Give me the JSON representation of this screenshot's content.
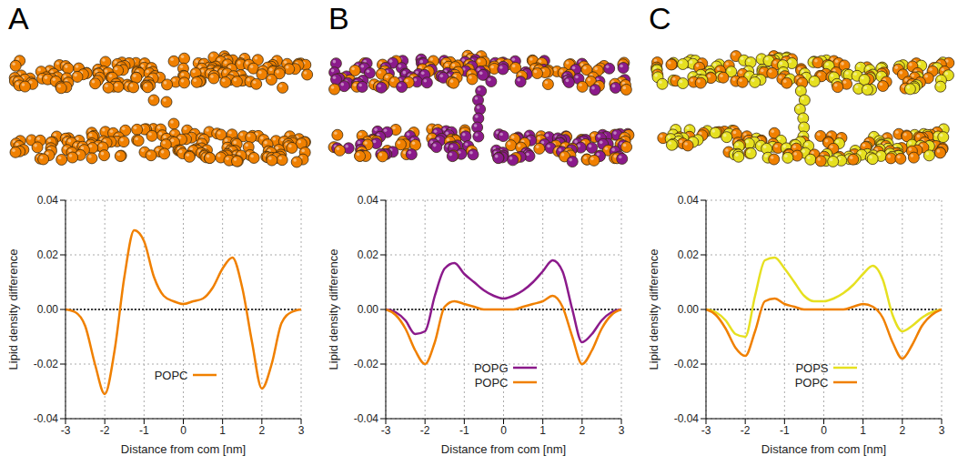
{
  "chart_data": [
    {
      "type": "line",
      "title": "A",
      "x": [
        -3,
        -2.75,
        -2.5,
        -2.25,
        -2,
        -1.75,
        -1.5,
        -1.25,
        -1,
        -0.75,
        -0.5,
        -0.25,
        0,
        0.25,
        0.5,
        0.75,
        1,
        1.25,
        1.5,
        1.75,
        2,
        2.25,
        2.5,
        2.75,
        3
      ],
      "series": [
        {
          "name": "POPC",
          "color": "#f08000",
          "values": [
            0,
            -0.001,
            -0.006,
            -0.02,
            -0.031,
            -0.015,
            0.012,
            0.029,
            0.025,
            0.012,
            0.005,
            0.003,
            0.002,
            0.003,
            0.004,
            0.008,
            0.015,
            0.019,
            0.008,
            -0.012,
            -0.029,
            -0.02,
            -0.005,
            -0.001,
            0
          ]
        }
      ],
      "xlim": [
        -3,
        3
      ],
      "xticks": [
        -3,
        -2,
        -1,
        0,
        1,
        2,
        3
      ],
      "ylim": [
        -0.04,
        0.04
      ],
      "yticks": [
        -0.04,
        -0.02,
        {
          "value": 0,
          "label": "0.00"
        },
        0.02,
        0.04
      ],
      "xlabel": "Distance from com [nm]",
      "ylabel": "Lipid density difference",
      "grid": true,
      "legend": "bottom"
    },
    {
      "type": "line",
      "title": "B",
      "x": [
        -3,
        -2.75,
        -2.5,
        -2.25,
        -2,
        -1.75,
        -1.5,
        -1.25,
        -1,
        -0.75,
        -0.5,
        -0.25,
        0,
        0.25,
        0.5,
        0.75,
        1,
        1.25,
        1.5,
        1.75,
        2,
        2.25,
        2.5,
        2.75,
        3
      ],
      "series": [
        {
          "name": "POPG",
          "color": "#8b1a8b",
          "values": [
            0,
            -0.001,
            -0.004,
            -0.009,
            -0.008,
            0.005,
            0.015,
            0.017,
            0.013,
            0.01,
            0.007,
            0.005,
            0.004,
            0.005,
            0.007,
            0.01,
            0.014,
            0.018,
            0.014,
            0,
            -0.012,
            -0.009,
            -0.004,
            -0.001,
            0
          ]
        },
        {
          "name": "POPC",
          "color": "#f08000",
          "values": [
            0,
            -0.002,
            -0.007,
            -0.015,
            -0.02,
            -0.012,
            0.001,
            0.003,
            0.002,
            0.001,
            0,
            0,
            0,
            0,
            0.001,
            0.002,
            0.003,
            0.005,
            0.001,
            -0.01,
            -0.02,
            -0.015,
            -0.007,
            -0.002,
            0
          ]
        }
      ],
      "xlim": [
        -3,
        3
      ],
      "xticks": [
        -3,
        -2,
        -1,
        0,
        1,
        2,
        3
      ],
      "ylim": [
        -0.04,
        0.04
      ],
      "yticks": [
        -0.04,
        -0.02,
        {
          "value": 0,
          "label": "0.00"
        },
        0.02,
        0.04
      ],
      "xlabel": "Distance from com [nm]",
      "ylabel": "Lipid density difference",
      "grid": true,
      "legend": "bottom"
    },
    {
      "type": "line",
      "title": "C",
      "x": [
        -3,
        -2.75,
        -2.5,
        -2.25,
        -2,
        -1.75,
        -1.5,
        -1.25,
        -1,
        -0.75,
        -0.5,
        -0.25,
        0,
        0.25,
        0.5,
        0.75,
        1,
        1.25,
        1.5,
        1.75,
        2,
        2.25,
        2.5,
        2.75,
        3
      ],
      "series": [
        {
          "name": "POPS",
          "color": "#e6e020",
          "values": [
            0,
            -0.001,
            -0.004,
            -0.009,
            -0.01,
            0.005,
            0.018,
            0.019,
            0.015,
            0.01,
            0.005,
            0.003,
            0.003,
            0.004,
            0.006,
            0.009,
            0.013,
            0.016,
            0.011,
            -0.002,
            -0.008,
            -0.006,
            -0.003,
            -0.001,
            0
          ]
        },
        {
          "name": "POPC",
          "color": "#f08000",
          "values": [
            0,
            -0.002,
            -0.007,
            -0.014,
            -0.017,
            -0.008,
            0.003,
            0.004,
            0.002,
            0.001,
            0,
            0,
            0,
            0,
            0,
            0.001,
            0.002,
            0.001,
            -0.003,
            -0.012,
            -0.018,
            -0.013,
            -0.006,
            -0.002,
            0
          ]
        }
      ],
      "xlim": [
        -3,
        3
      ],
      "xticks": [
        -3,
        -2,
        -1,
        0,
        1,
        2,
        3
      ],
      "ylim": [
        -0.04,
        0.04
      ],
      "yticks": [
        -0.04,
        -0.02,
        {
          "value": 0,
          "label": "0.00"
        },
        0.02,
        0.04
      ],
      "xlabel": "Distance from com [nm]",
      "ylabel": "Lipid density difference",
      "grid": true,
      "legend": "bottom"
    }
  ]
}
